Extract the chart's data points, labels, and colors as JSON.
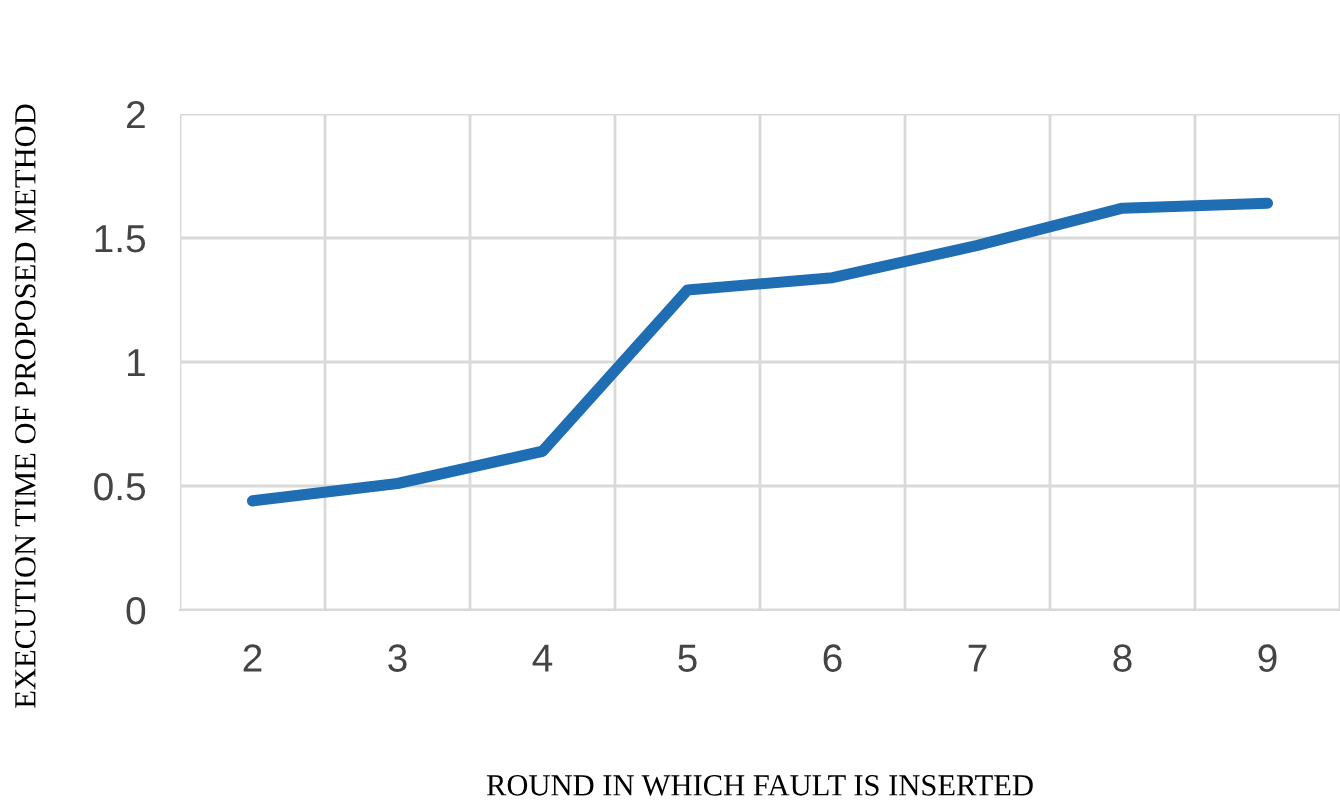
{
  "chart_data": {
    "type": "line",
    "xlabel": "ROUND IN WHICH FAULT IS INSERTED",
    "ylabel": "EXECUTION TIME OF PROPOSED METHOD",
    "categories": [
      "2",
      "3",
      "4",
      "5",
      "6",
      "7",
      "8",
      "9"
    ],
    "series": [
      {
        "color": "#1f6db2",
        "values": [
          0.44,
          0.51,
          0.64,
          1.29,
          1.34,
          1.47,
          1.62,
          1.64
        ]
      }
    ],
    "ylim": [
      0,
      2
    ],
    "yticks": [
      0,
      0.5,
      1,
      1.5,
      2
    ],
    "grid": true,
    "line_style": "solid",
    "marker": "none"
  }
}
